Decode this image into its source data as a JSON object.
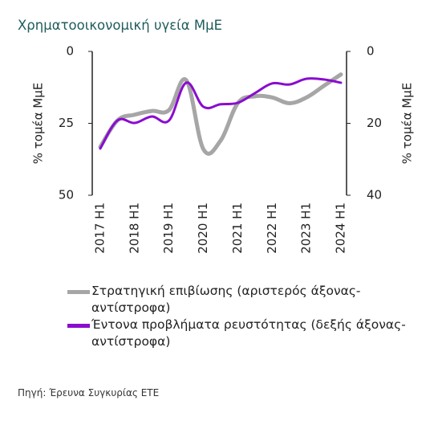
{
  "chart_data": {
    "type": "line",
    "title": "Χρηματοοικονομική υγεία ΜμΕ",
    "y_label": "% τομέα ΜμΕ",
    "y2_label": "% τομέα ΜμΕ",
    "categories": [
      "2017 H1",
      null,
      "2018 H1",
      null,
      "2019 H1",
      null,
      "2020 H1",
      null,
      "2021 H1",
      null,
      "2022 H1",
      null,
      "2023 H1",
      null,
      "2024 H1"
    ],
    "ylim": [
      0,
      50
    ],
    "yticks": [
      0,
      25,
      50
    ],
    "y_inverted": true,
    "y2lim": [
      0,
      40
    ],
    "y2ticks": [
      0,
      20,
      40
    ],
    "y2_inverted": true,
    "series": [
      {
        "name": "Στρατηγική επιβίωσης (αριστερός άξονας- αντίστροφα)",
        "color": "#a6a6a6",
        "axis": "y",
        "values": [
          33.2,
          24,
          22,
          20.7,
          20.4,
          10,
          34,
          31,
          18,
          15.6,
          16,
          18,
          16,
          12,
          8
        ]
      },
      {
        "name": "Έντονα προβλήματα ρευστότητας (δεξής άξονας- αντίστροφα)",
        "color": "#8a0ccf",
        "axis": "y2",
        "values": [
          27,
          19.2,
          19.9,
          18.1,
          19.2,
          8.7,
          15.4,
          14.7,
          14.3,
          11.6,
          8.9,
          9.2,
          7.6,
          7.8,
          8.7
        ]
      }
    ],
    "source": "Πηγή: Έρευνα Συγκυρίας ΕΤΕ"
  }
}
